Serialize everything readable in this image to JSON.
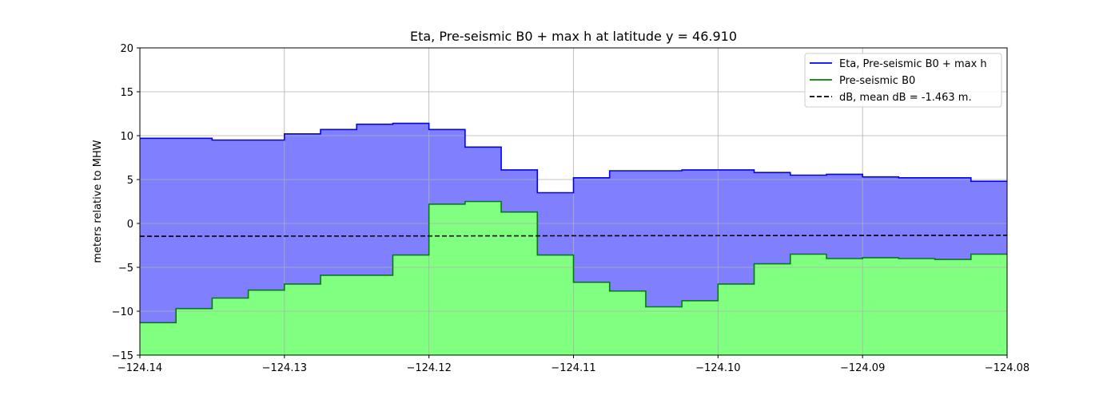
{
  "chart_data": {
    "type": "area",
    "title": "Eta, Pre-seismic B0 + max h at latitude y = 46.910",
    "xlabel": "",
    "ylabel": "meters relative to MHW",
    "xlim": [
      -124.14,
      -124.08
    ],
    "ylim": [
      -15,
      20
    ],
    "x_ticks": [
      "−124.14",
      "−124.13",
      "−124.12",
      "−124.11",
      "−124.10",
      "−124.09",
      "−124.08"
    ],
    "x_tick_values": [
      -124.14,
      -124.13,
      -124.12,
      -124.11,
      -124.1,
      -124.09,
      -124.08
    ],
    "y_ticks": [
      "−15",
      "−10",
      "−5",
      "0",
      "5",
      "10",
      "15",
      "20"
    ],
    "y_tick_values": [
      -15,
      -10,
      -5,
      0,
      5,
      10,
      15,
      20
    ],
    "grid": true,
    "legend_position": "top-right",
    "cell_edges": [
      -124.14,
      -124.1375,
      -124.135,
      -124.1325,
      -124.13,
      -124.1275,
      -124.125,
      -124.1225,
      -124.12,
      -124.1175,
      -124.115,
      -124.1125,
      -124.11,
      -124.1075,
      -124.105,
      -124.1025,
      -124.1,
      -124.0975,
      -124.095,
      -124.0925,
      -124.09,
      -124.0875,
      -124.085,
      -124.0825,
      -124.08
    ],
    "series": [
      {
        "name": "Eta, Pre-seismic B0 + max h",
        "color": "#0000ff",
        "fill": "#8080ff",
        "style": "solid",
        "values": [
          9.7,
          9.7,
          9.5,
          9.5,
          10.2,
          10.7,
          11.3,
          11.4,
          10.7,
          8.7,
          6.1,
          3.5,
          5.2,
          6.0,
          6.0,
          6.1,
          6.1,
          5.8,
          5.5,
          5.6,
          5.3,
          5.2,
          5.2,
          4.8
        ]
      },
      {
        "name": "Pre-seismic B0",
        "color": "#008000",
        "fill": "#80ff80",
        "style": "solid",
        "values": [
          -11.3,
          -9.7,
          -8.5,
          -7.6,
          -6.9,
          -5.9,
          -5.9,
          -3.6,
          2.2,
          2.5,
          1.3,
          -3.6,
          -6.7,
          -7.7,
          -9.5,
          -8.8,
          -6.9,
          -4.6,
          -3.5,
          -4.0,
          -3.9,
          -4.0,
          -4.1,
          -3.5
        ]
      },
      {
        "name": "dB, mean dB = -1.463 m.",
        "color": "#000000",
        "style": "dashed",
        "x": [
          -124.14,
          -124.08
        ],
        "values": [
          -1.463,
          -1.35
        ]
      }
    ]
  }
}
